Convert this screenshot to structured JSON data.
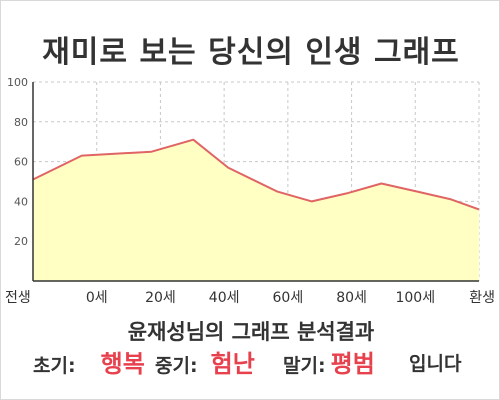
{
  "title": "재미로 보는 당신의 인생 그래프",
  "chart_data": {
    "type": "area",
    "x": [
      0,
      0.7,
      1.7,
      2.3,
      2.8,
      3.5,
      4.0,
      4.5,
      5.0,
      5.5,
      6.0,
      6.4
    ],
    "values": [
      51,
      63,
      65,
      71,
      57,
      45,
      40,
      44,
      49,
      45,
      41,
      36
    ],
    "x_tick_labels": [
      "전생",
      "0세",
      "20세",
      "40세",
      "60세",
      "80세",
      "100세",
      "환생"
    ],
    "y_ticks": [
      "20",
      "40",
      "60",
      "80",
      "100"
    ],
    "ylim": [
      0,
      100
    ],
    "grid": true,
    "colors": {
      "line": "#e06464",
      "fill": "#ffffc4",
      "grid": "#c8c8c8",
      "axis": "#333333",
      "tick_text": "#555555"
    }
  },
  "analysis": {
    "title": "윤재성님의 그래프 분석결과",
    "early_label": "초기:",
    "early_value": "행복",
    "mid_label": "중기:",
    "mid_value": "험난",
    "late_label": "말기:",
    "late_value": "평범",
    "suffix": "입니다",
    "highlight_color": "#e8414e"
  }
}
